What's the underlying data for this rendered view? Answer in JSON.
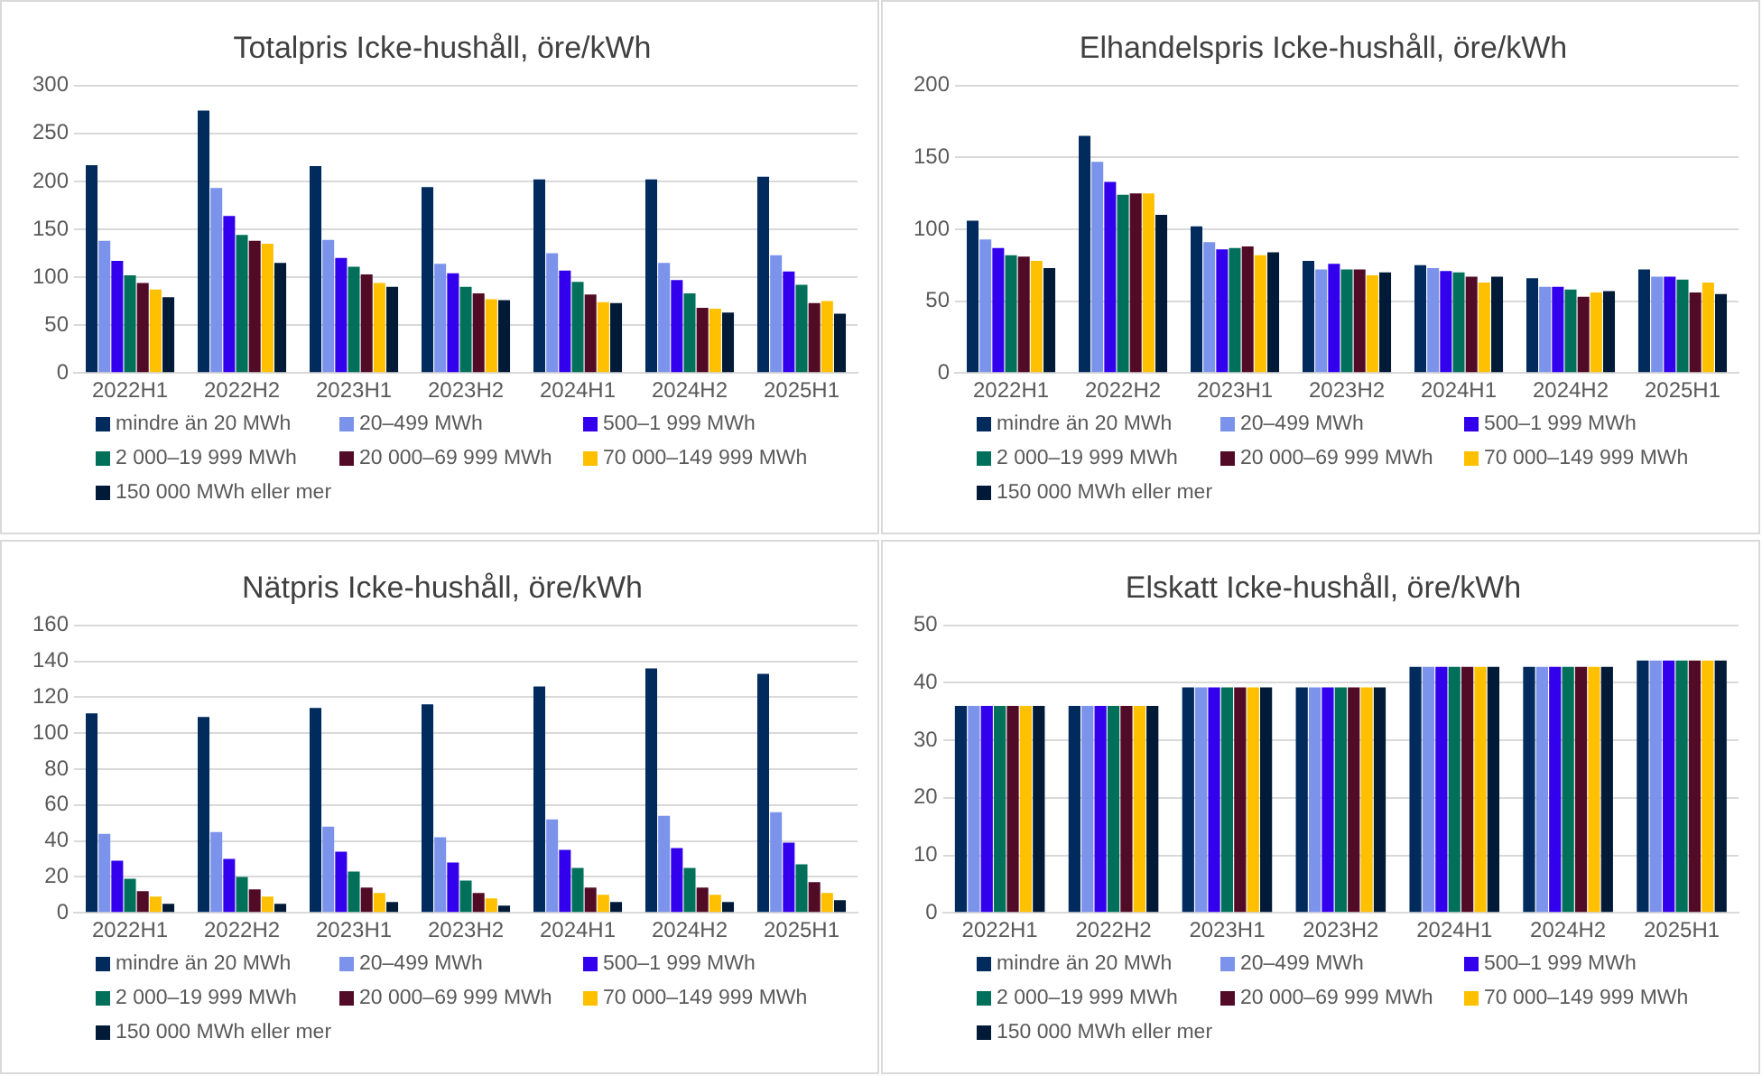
{
  "chart_data": [
    {
      "type": "bar",
      "title": "Totalpris Icke-hushåll, öre/kWh",
      "categories": [
        "2022H1",
        "2022H2",
        "2023H1",
        "2023H2",
        "2024H1",
        "2024H2",
        "2025H1"
      ],
      "ylim": [
        0,
        300
      ],
      "yticks": [
        0,
        50,
        100,
        150,
        200,
        250,
        300
      ],
      "grid": "y",
      "legend": "bottom",
      "series": [
        {
          "name": "mindre än 20 MWh",
          "color": "#002b5c",
          "values": [
            217,
            274,
            216,
            194,
            202,
            202,
            205
          ]
        },
        {
          "name": "20–499 MWh",
          "color": "#7b93ea",
          "values": [
            138,
            193,
            139,
            114,
            125,
            115,
            123
          ]
        },
        {
          "name": "500–1 999 MWh",
          "color": "#3300ee",
          "values": [
            117,
            164,
            120,
            104,
            107,
            97,
            106
          ]
        },
        {
          "name": "2 000–19 999 MWh",
          "color": "#00705a",
          "values": [
            102,
            144,
            111,
            90,
            95,
            83,
            92
          ]
        },
        {
          "name": "20 000–69 999 MWh",
          "color": "#520b26",
          "values": [
            94,
            138,
            103,
            83,
            82,
            68,
            73
          ]
        },
        {
          "name": "70 000–149 999 MWh",
          "color": "#ffc000",
          "values": [
            87,
            135,
            94,
            77,
            74,
            67,
            75
          ]
        },
        {
          "name": "150 000 MWh eller mer",
          "color": "#001a38",
          "values": [
            79,
            115,
            90,
            76,
            73,
            63,
            62
          ]
        }
      ]
    },
    {
      "type": "bar",
      "title": "Elhandelspris Icke-hushåll, öre/kWh",
      "categories": [
        "2022H1",
        "2022H2",
        "2023H1",
        "2023H2",
        "2024H1",
        "2024H2",
        "2025H1"
      ],
      "ylim": [
        0,
        200
      ],
      "yticks": [
        0,
        50,
        100,
        150,
        200
      ],
      "grid": "y",
      "legend": "bottom",
      "series": [
        {
          "name": "mindre än 20 MWh",
          "color": "#002b5c",
          "values": [
            106,
            165,
            102,
            78,
            75,
            66,
            72
          ]
        },
        {
          "name": "20–499 MWh",
          "color": "#7b93ea",
          "values": [
            93,
            147,
            91,
            72,
            73,
            60,
            67
          ]
        },
        {
          "name": "500–1 999 MWh",
          "color": "#3300ee",
          "values": [
            87,
            133,
            86,
            76,
            71,
            60,
            67
          ]
        },
        {
          "name": "2 000–19 999 MWh",
          "color": "#00705a",
          "values": [
            82,
            124,
            87,
            72,
            70,
            58,
            65
          ]
        },
        {
          "name": "20 000–69 999 MWh",
          "color": "#520b26",
          "values": [
            81,
            125,
            88,
            72,
            67,
            53,
            56
          ]
        },
        {
          "name": "70 000–149 999 MWh",
          "color": "#ffc000",
          "values": [
            78,
            125,
            82,
            68,
            63,
            56,
            63
          ]
        },
        {
          "name": "150 000 MWh eller mer",
          "color": "#001a38",
          "values": [
            73,
            110,
            84,
            70,
            67,
            57,
            55
          ]
        }
      ]
    },
    {
      "type": "bar",
      "title": "Nätpris Icke-hushåll, öre/kWh",
      "categories": [
        "2022H1",
        "2022H2",
        "2023H1",
        "2023H2",
        "2024H1",
        "2024H2",
        "2025H1"
      ],
      "ylim": [
        0,
        160
      ],
      "yticks": [
        0,
        20,
        40,
        60,
        80,
        100,
        120,
        140,
        160
      ],
      "grid": "y",
      "legend": "bottom",
      "series": [
        {
          "name": "mindre än 20 MWh",
          "color": "#002b5c",
          "values": [
            111,
            109,
            114,
            116,
            126,
            136,
            133
          ]
        },
        {
          "name": "20–499 MWh",
          "color": "#7b93ea",
          "values": [
            44,
            45,
            48,
            42,
            52,
            54,
            56
          ]
        },
        {
          "name": "500–1 999 MWh",
          "color": "#3300ee",
          "values": [
            29,
            30,
            34,
            28,
            35,
            36,
            39
          ]
        },
        {
          "name": "2 000–19 999 MWh",
          "color": "#00705a",
          "values": [
            19,
            20,
            23,
            18,
            25,
            25,
            27
          ]
        },
        {
          "name": "20 000–69 999 MWh",
          "color": "#520b26",
          "values": [
            12,
            13,
            14,
            11,
            14,
            14,
            17
          ]
        },
        {
          "name": "70 000–149 999 MWh",
          "color": "#ffc000",
          "values": [
            9,
            9,
            11,
            8,
            10,
            10,
            11
          ]
        },
        {
          "name": "150 000 MWh eller mer",
          "color": "#001a38",
          "values": [
            5,
            5,
            6,
            4,
            6,
            6,
            7
          ]
        }
      ]
    },
    {
      "type": "bar",
      "title": "Elskatt Icke-hushåll, öre/kWh",
      "categories": [
        "2022H1",
        "2022H2",
        "2023H1",
        "2023H2",
        "2024H1",
        "2024H2",
        "2025H1"
      ],
      "ylim": [
        0,
        50
      ],
      "yticks": [
        0,
        10,
        20,
        30,
        40,
        50
      ],
      "grid": "y",
      "legend": "bottom",
      "series": [
        {
          "name": "mindre än 20 MWh",
          "color": "#002b5c",
          "values": [
            36,
            36,
            39.2,
            39.2,
            42.8,
            42.8,
            43.9
          ]
        },
        {
          "name": "20–499 MWh",
          "color": "#7b93ea",
          "values": [
            36,
            36,
            39.2,
            39.2,
            42.8,
            42.8,
            43.9
          ]
        },
        {
          "name": "500–1 999 MWh",
          "color": "#3300ee",
          "values": [
            36,
            36,
            39.2,
            39.2,
            42.8,
            42.8,
            43.9
          ]
        },
        {
          "name": "2 000–19 999 MWh",
          "color": "#00705a",
          "values": [
            36,
            36,
            39.2,
            39.2,
            42.8,
            42.8,
            43.9
          ]
        },
        {
          "name": "20 000–69 999 MWh",
          "color": "#520b26",
          "values": [
            36,
            36,
            39.2,
            39.2,
            42.8,
            42.8,
            43.9
          ]
        },
        {
          "name": "70 000–149 999 MWh",
          "color": "#ffc000",
          "values": [
            36,
            36,
            39.2,
            39.2,
            42.8,
            42.8,
            43.9
          ]
        },
        {
          "name": "150 000 MWh eller mer",
          "color": "#001a38",
          "values": [
            36,
            36,
            39.2,
            39.2,
            42.8,
            42.8,
            43.9
          ]
        }
      ]
    }
  ]
}
